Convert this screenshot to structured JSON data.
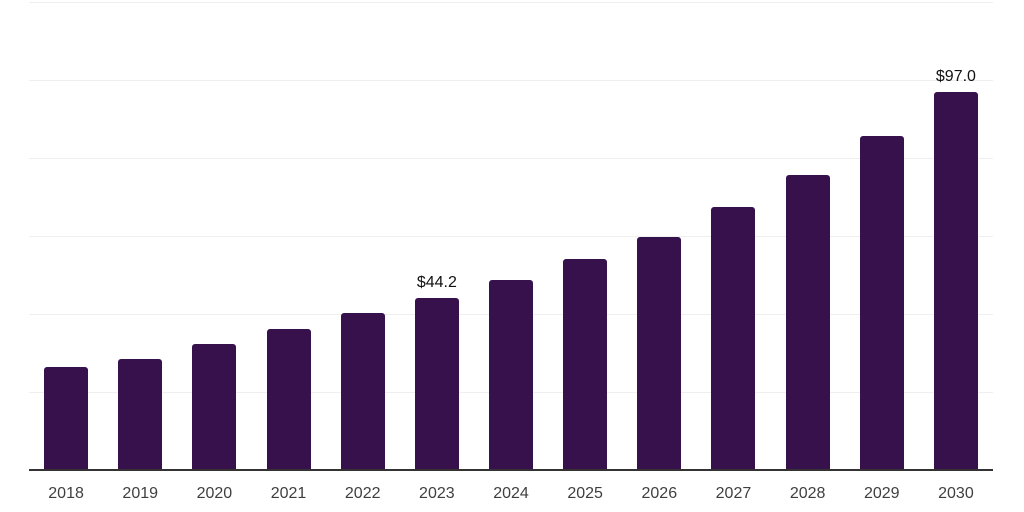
{
  "chart_data": {
    "type": "bar",
    "title": "",
    "xlabel": "",
    "ylabel": "",
    "categories": [
      "2018",
      "2019",
      "2020",
      "2021",
      "2022",
      "2023",
      "2024",
      "2025",
      "2026",
      "2027",
      "2028",
      "2029",
      "2030"
    ],
    "values": [
      26.4,
      28.4,
      32.3,
      36.1,
      40.2,
      44.2,
      48.7,
      54.0,
      59.8,
      67.4,
      75.6,
      85.6,
      97.0
    ],
    "bar_labels": [
      "",
      "",
      "",
      "",
      "",
      "$44.2",
      "",
      "",
      "",
      "",
      "",
      "",
      "$97.0"
    ],
    "ylim": [
      0,
      120
    ],
    "gridline_step": 20,
    "grid": true,
    "legend_position": "none",
    "colors": {
      "bar": "#36114C",
      "gridline": "#EFEFEF",
      "axis_line": "#333333",
      "tick_label": "#3F3F3F",
      "value_label": "#111111",
      "background": "#FFFFFF"
    }
  }
}
